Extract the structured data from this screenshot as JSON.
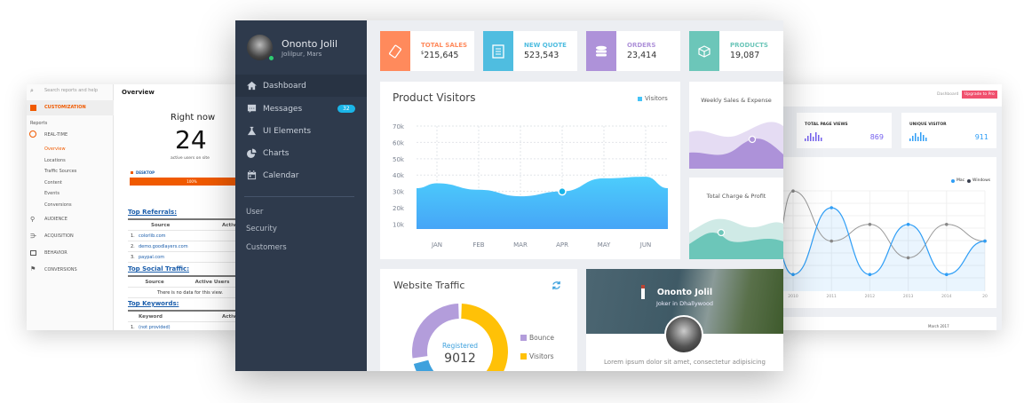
{
  "analytics": {
    "search_placeholder": "Search reports and help",
    "customization": "CUSTOMIZATION",
    "reports": "Reports",
    "realtime": "REAL-TIME",
    "realtime_items": [
      "Overview",
      "Locations",
      "Traffic Sources",
      "Content",
      "Events",
      "Conversions"
    ],
    "sections": [
      "AUDIENCE",
      "ACQUISITION",
      "BEHAVIOR",
      "CONVERSIONS"
    ],
    "overview_title": "Overview",
    "right_now": "Right now",
    "active_count": "24",
    "active_caption": "active users on site",
    "device": "DESKTOP",
    "device_pct": "100%",
    "device_fraction": 1.0,
    "top_referrals": {
      "title": "Top Referrals:",
      "headers": [
        "Source",
        "Active"
      ],
      "rows": [
        [
          "1.",
          "colorlib.com"
        ],
        [
          "2.",
          "demo.goodlayers.com"
        ],
        [
          "3.",
          "paypal.com"
        ]
      ]
    },
    "top_social": {
      "title": "Top Social Traffic:",
      "headers": [
        "Source",
        "Active Users"
      ],
      "empty": "There is no data for this view."
    },
    "top_keywords": {
      "title": "Top Keywords:",
      "headers": [
        "Keyword",
        "Active"
      ],
      "rows": [
        [
          "1.",
          "(not provided)"
        ]
      ]
    },
    "accent": "#f05a00"
  },
  "sidebar": {
    "user_name": "Ononto Jolil",
    "user_location": "Jolilpur, Mars",
    "status_color": "#2ecc71",
    "items": [
      {
        "label": "Dashboard",
        "icon": "home-icon"
      },
      {
        "label": "Messages",
        "icon": "message-icon",
        "badge": "32"
      },
      {
        "label": "UI Elements",
        "icon": "flask-icon"
      },
      {
        "label": "Charts",
        "icon": "pie-chart-icon"
      },
      {
        "label": "Calendar",
        "icon": "calendar-icon"
      }
    ],
    "links": [
      "User",
      "Security",
      "Customers"
    ]
  },
  "stats": [
    {
      "label": "TOTAL SALES",
      "currency": "$",
      "value": "215,645",
      "color": "#ff8a5c",
      "icon": "ticket-icon"
    },
    {
      "label": "NEW QUOTE",
      "value": "523,543",
      "color": "#4fbde0",
      "icon": "document-icon"
    },
    {
      "label": "ORDERS",
      "value": "23,414",
      "color": "#ae92d9",
      "icon": "database-icon"
    },
    {
      "label": "PRODUCTS",
      "value": "19,087",
      "color": "#6cc6b9",
      "icon": "cube-icon"
    }
  ],
  "product_visitors": {
    "title": "Product Visitors",
    "legend": "Visitors",
    "y_ticks": [
      "70k",
      "60k",
      "50k",
      "40k",
      "30k",
      "20k",
      "10k"
    ],
    "x_ticks": [
      "JAN",
      "FEB",
      "MAR",
      "APR",
      "MAY",
      "JUN"
    ],
    "values_k": [
      35,
      31,
      27,
      30,
      38,
      39
    ],
    "highlight": "APR"
  },
  "weekly": {
    "title": "Weekly Sales & Expense"
  },
  "charge": {
    "title": "Total Charge & Profit"
  },
  "traffic": {
    "title": "Website Traffic",
    "center_label": "Registered",
    "center_value": "9012",
    "legend": [
      {
        "label": "Bounce",
        "color": "#b39ddb"
      },
      {
        "label": "Visitors",
        "color": "#ffc107"
      }
    ],
    "registered_color": "#3ea1dd"
  },
  "profile": {
    "name": "Ononto Jolil",
    "role": "Joker in Dhallywood",
    "bio": "Lorem ipsum dolor sit amet, consectetur adipisicing"
  },
  "right_panel": {
    "breadcrumb": "Dashboard",
    "upgrade": "Upgrade to Pro",
    "stats": [
      {
        "label": "TOTAL PAGE VIEWS",
        "value": "869",
        "color": "#7460ee"
      },
      {
        "label": "UNIQUE VISITOR",
        "value": "911",
        "color": "#2f9ef6"
      }
    ],
    "legend": [
      {
        "label": "Mac",
        "color": "#2f9ef6"
      },
      {
        "label": "Windows",
        "color": "#3a4050"
      }
    ],
    "x_ticks": [
      "2010",
      "2011",
      "2012",
      "2013",
      "2014",
      "20"
    ],
    "mac": [
      1,
      5,
      1,
      4,
      1,
      3
    ],
    "windows": [
      6,
      3,
      4,
      2,
      4,
      3
    ],
    "footer_value": "March 2017"
  }
}
